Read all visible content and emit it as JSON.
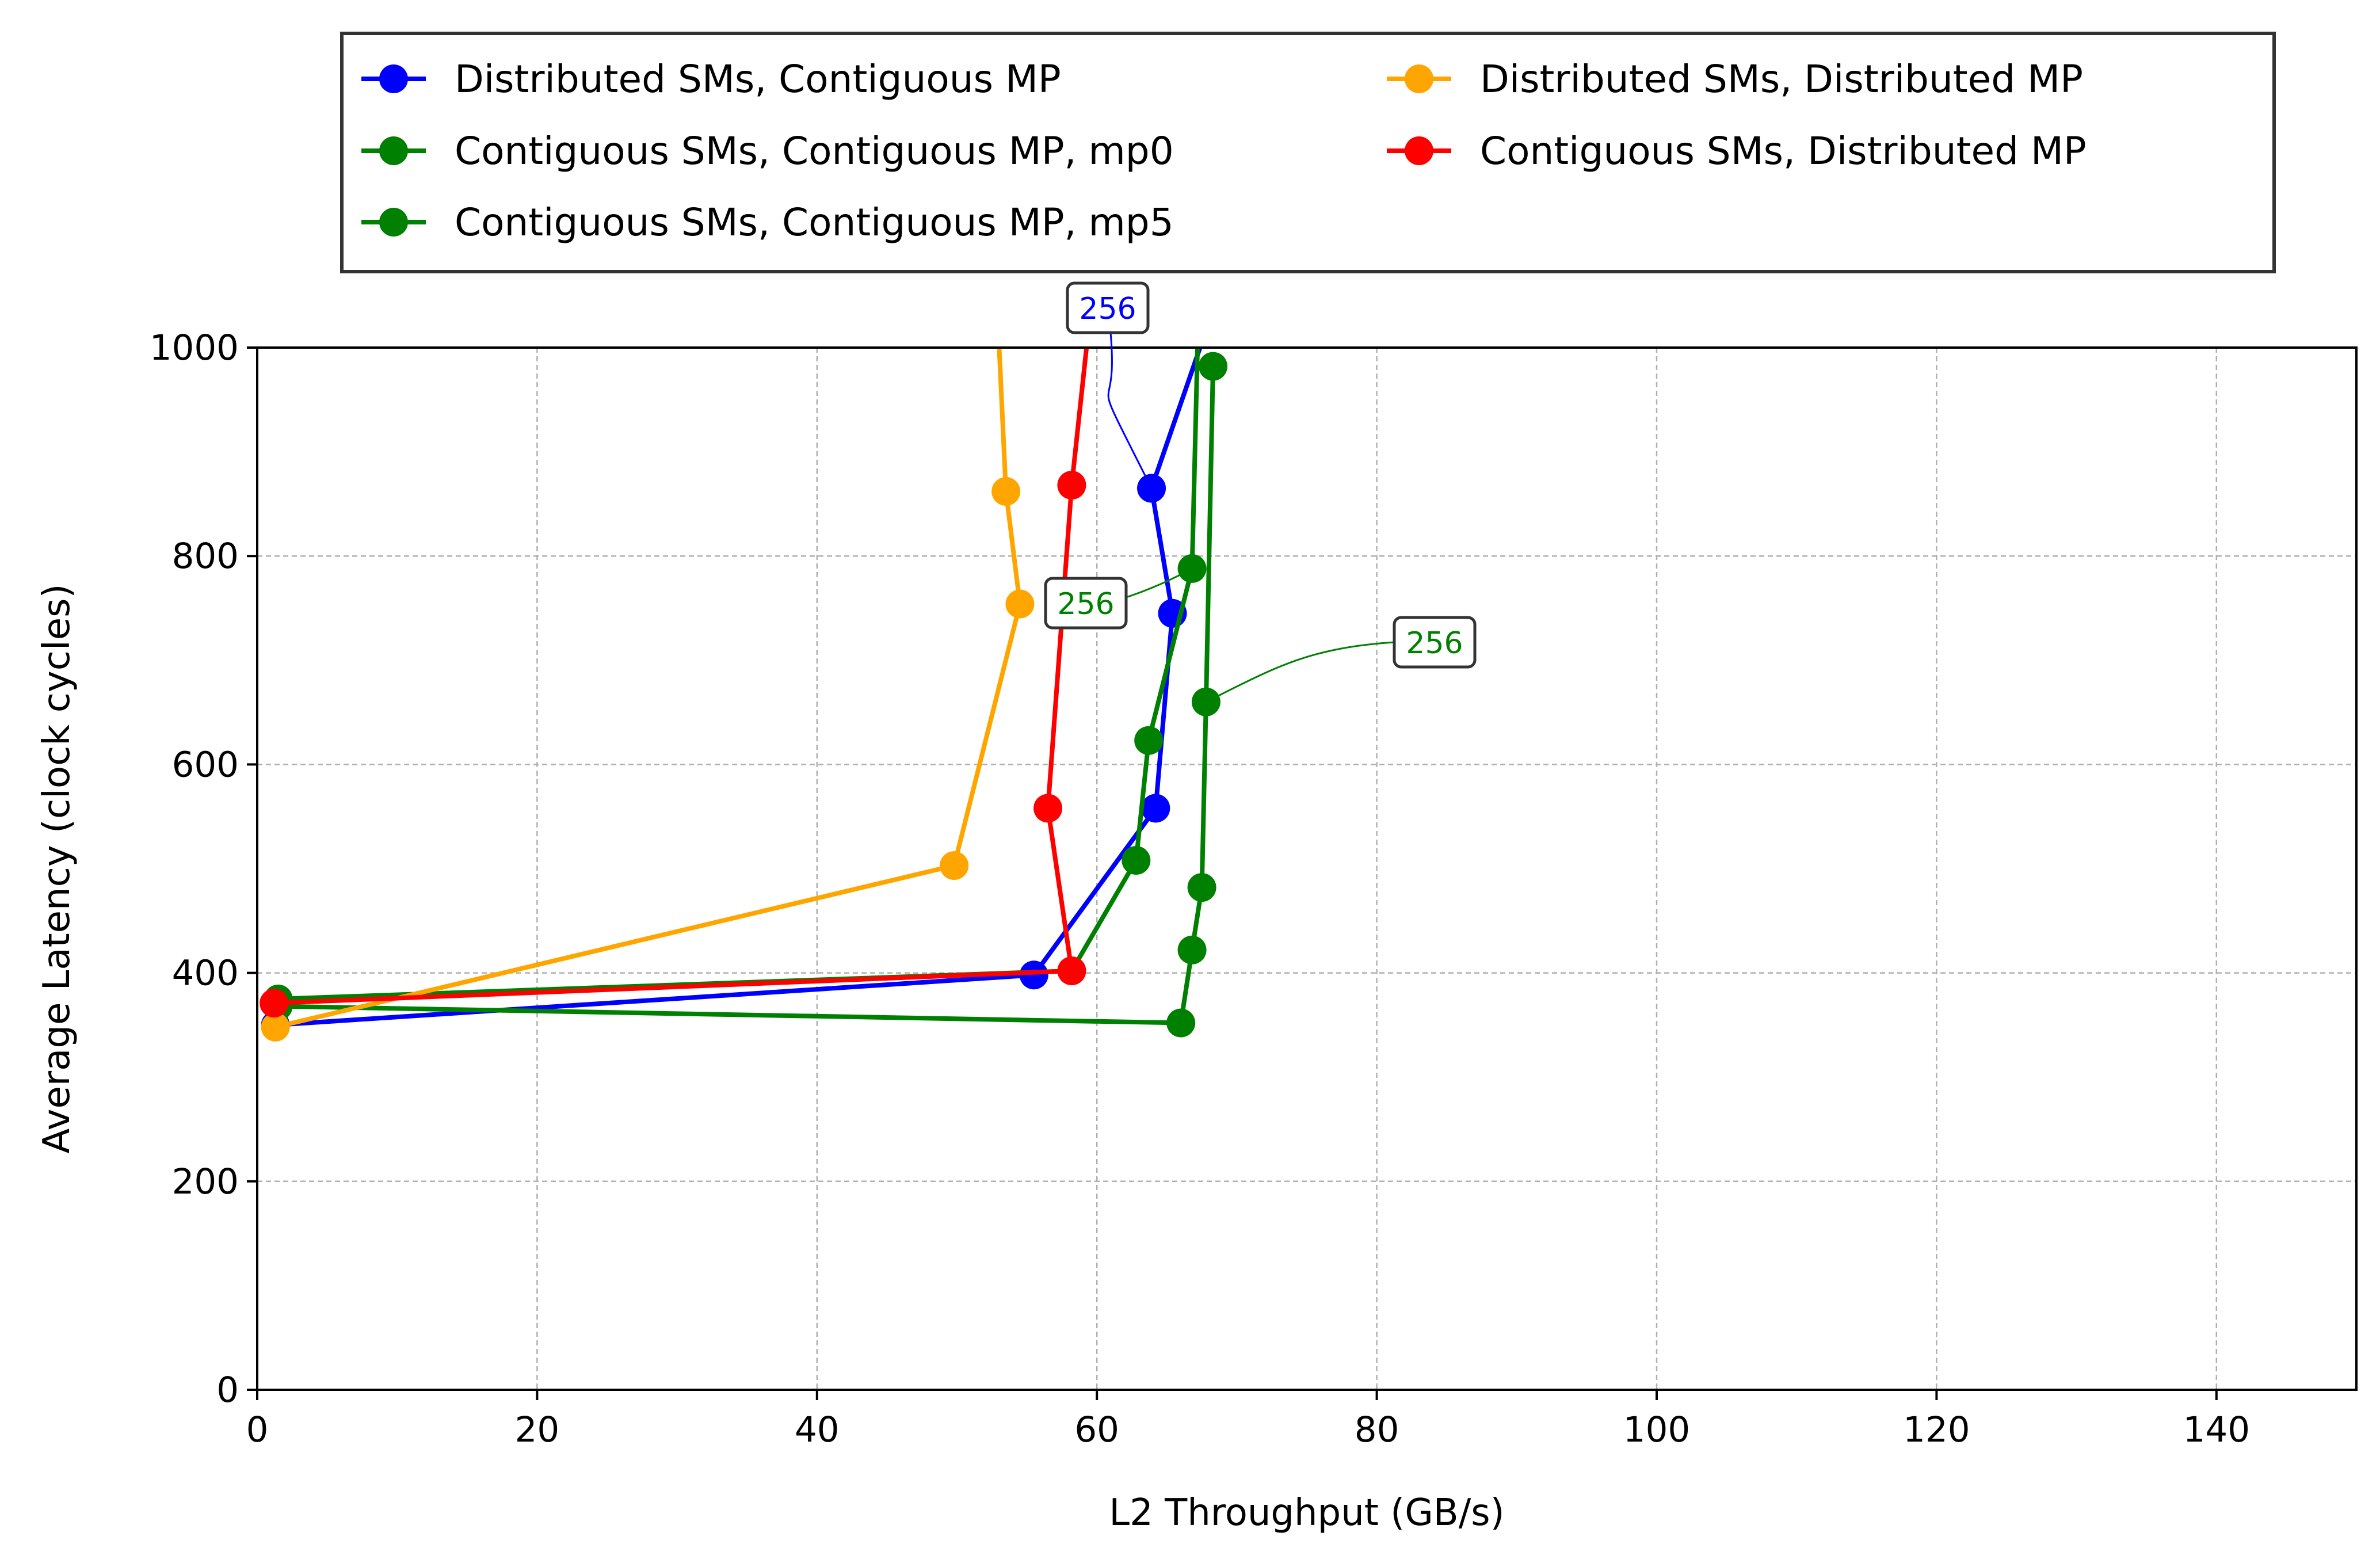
{
  "chart_data": {
    "type": "line",
    "xlabel": "L2 Throughput (GB/s)",
    "ylabel": "Average Latency (clock cycles)",
    "xlim": [
      0,
      150
    ],
    "ylim": [
      0,
      1000
    ],
    "xticks": [
      0,
      20,
      40,
      60,
      80,
      100,
      120,
      140
    ],
    "yticks": [
      0,
      200,
      400,
      600,
      800,
      1000
    ],
    "grid": true,
    "legend_position": "top, above plot",
    "series": [
      {
        "name": "Distributed SMs, Contiguous MP",
        "color": "#0000ff",
        "x": [
          1.3,
          55.5,
          64.2,
          65.4,
          63.9,
          67.5
        ],
        "y": [
          350,
          398,
          558,
          745,
          865,
          1005
        ],
        "markers": [
          true,
          true,
          true,
          true,
          true,
          false
        ]
      },
      {
        "name": "Contiguous SMs, Contiguous MP, mp0",
        "color": "#008000",
        "x": [
          1.5,
          58.2,
          62.8,
          63.7,
          66.8,
          67.2
        ],
        "y": [
          375,
          402,
          508,
          623,
          788,
          1005
        ],
        "markers": [
          true,
          false,
          true,
          true,
          true,
          false
        ]
      },
      {
        "name": "Contiguous SMs, Contiguous MP, mp5",
        "color": "#008000",
        "x": [
          1.5,
          66.0,
          66.8,
          67.5,
          67.8,
          68.3
        ],
        "y": [
          368,
          352,
          422,
          482,
          660,
          982
        ],
        "markers": [
          true,
          true,
          true,
          true,
          true,
          true
        ]
      },
      {
        "name": "Distributed SMs, Distributed MP",
        "color": "#ffa500",
        "x": [
          1.3,
          49.8,
          54.5,
          53.5,
          53.0
        ],
        "y": [
          348,
          503,
          754,
          862,
          1005
        ],
        "markers": [
          true,
          true,
          true,
          true,
          false
        ]
      },
      {
        "name": "Contiguous SMs, Distributed MP",
        "color": "#ff0000",
        "x": [
          1.2,
          58.2,
          56.5,
          58.2,
          59.3
        ],
        "y": [
          371,
          402,
          558,
          868,
          1005
        ],
        "markers": [
          true,
          true,
          true,
          true,
          false
        ]
      }
    ],
    "annotations": [
      {
        "text": "256",
        "color": "#0000ff",
        "series": "Distributed SMs, Contiguous MP",
        "point": [
          63.9,
          865
        ]
      },
      {
        "text": "256",
        "color": "#008000",
        "series": "Contiguous SMs, Contiguous MP, mp0",
        "point": [
          66.8,
          788
        ]
      },
      {
        "text": "256",
        "color": "#008000",
        "series": "Contiguous SMs, Contiguous MP, mp5",
        "point": [
          67.8,
          660
        ]
      }
    ]
  }
}
